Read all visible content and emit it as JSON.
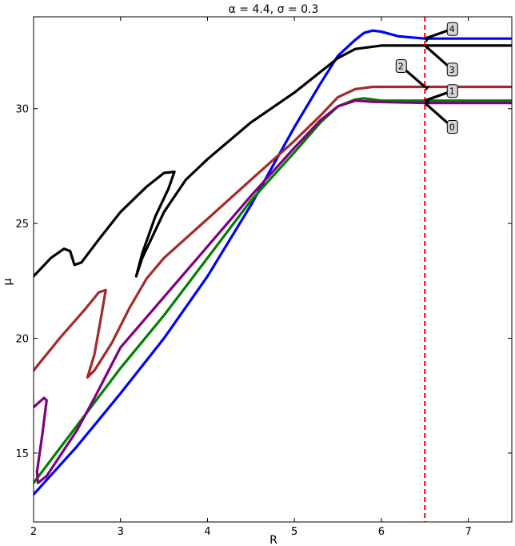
{
  "chart_data": {
    "type": "line",
    "title": "α = 4.4, σ = 0.3",
    "xlabel": "R",
    "ylabel": "μ",
    "xlim": [
      2,
      7.5
    ],
    "ylim": [
      12,
      34
    ],
    "xticks": [
      2,
      3,
      4,
      5,
      6,
      7
    ],
    "yticks": [
      15,
      20,
      25,
      30
    ],
    "grid": false,
    "vline": {
      "x": 6.5,
      "color": "#ff0000",
      "style": "dashed"
    },
    "series": [
      {
        "color": "#0000ff",
        "points": [
          [
            2.0,
            13.2
          ],
          [
            2.5,
            15.3
          ],
          [
            3.0,
            17.6
          ],
          [
            3.5,
            20.0
          ],
          [
            4.0,
            22.7
          ],
          [
            4.5,
            25.8
          ],
          [
            5.0,
            29.2
          ],
          [
            5.3,
            31.1
          ],
          [
            5.5,
            32.3
          ],
          [
            5.7,
            33.0
          ],
          [
            5.8,
            33.3
          ],
          [
            5.9,
            33.4
          ],
          [
            6.0,
            33.35
          ],
          [
            6.2,
            33.15
          ],
          [
            6.5,
            33.05
          ],
          [
            7.0,
            33.05
          ],
          [
            7.5,
            33.05
          ]
        ]
      },
      {
        "color": "#008000",
        "points": [
          [
            2.0,
            13.7
          ],
          [
            2.5,
            16.2
          ],
          [
            3.0,
            18.7
          ],
          [
            3.5,
            21.0
          ],
          [
            4.0,
            23.5
          ],
          [
            4.5,
            26.0
          ],
          [
            5.0,
            28.1
          ],
          [
            5.3,
            29.4
          ],
          [
            5.5,
            30.1
          ],
          [
            5.7,
            30.4
          ],
          [
            5.8,
            30.45
          ],
          [
            6.0,
            30.35
          ],
          [
            6.5,
            30.35
          ],
          [
            7.0,
            30.35
          ],
          [
            7.5,
            30.35
          ]
        ]
      },
      {
        "color": "#800080",
        "points": [
          [
            2.0,
            17.0
          ],
          [
            2.12,
            17.4
          ],
          [
            2.15,
            17.3
          ],
          [
            2.1,
            15.8
          ],
          [
            2.04,
            14.2
          ],
          [
            2.05,
            13.7
          ],
          [
            2.15,
            14.0
          ],
          [
            2.5,
            16.0
          ],
          [
            2.7,
            17.4
          ],
          [
            3.0,
            19.6
          ],
          [
            3.5,
            21.8
          ],
          [
            4.0,
            24.0
          ],
          [
            4.5,
            26.2
          ],
          [
            5.0,
            28.3
          ],
          [
            5.3,
            29.5
          ],
          [
            5.5,
            30.1
          ],
          [
            5.7,
            30.35
          ],
          [
            5.9,
            30.3
          ],
          [
            6.5,
            30.25
          ],
          [
            7.0,
            30.25
          ],
          [
            7.5,
            30.25
          ]
        ]
      },
      {
        "color": "#a52a2a",
        "points": [
          [
            2.0,
            18.6
          ],
          [
            2.3,
            20.0
          ],
          [
            2.6,
            21.3
          ],
          [
            2.75,
            22.0
          ],
          [
            2.83,
            22.1
          ],
          [
            2.78,
            21.0
          ],
          [
            2.7,
            19.3
          ],
          [
            2.62,
            18.3
          ],
          [
            2.7,
            18.6
          ],
          [
            2.9,
            19.8
          ],
          [
            3.1,
            21.3
          ],
          [
            3.3,
            22.6
          ],
          [
            3.5,
            23.5
          ],
          [
            4.0,
            25.2
          ],
          [
            4.5,
            26.9
          ],
          [
            5.0,
            28.6
          ],
          [
            5.3,
            29.7
          ],
          [
            5.5,
            30.5
          ],
          [
            5.7,
            30.85
          ],
          [
            5.9,
            30.95
          ],
          [
            6.5,
            30.95
          ],
          [
            7.0,
            30.95
          ],
          [
            7.5,
            30.95
          ]
        ]
      },
      {
        "color": "#000000",
        "points": [
          [
            2.0,
            22.7
          ],
          [
            2.2,
            23.5
          ],
          [
            2.35,
            23.9
          ],
          [
            2.42,
            23.8
          ],
          [
            2.47,
            23.2
          ],
          [
            2.55,
            23.3
          ],
          [
            2.75,
            24.3
          ],
          [
            3.0,
            25.5
          ],
          [
            3.3,
            26.6
          ],
          [
            3.5,
            27.2
          ],
          [
            3.62,
            27.25
          ],
          [
            3.55,
            26.5
          ],
          [
            3.4,
            25.3
          ],
          [
            3.25,
            23.7
          ],
          [
            3.18,
            22.7
          ],
          [
            3.25,
            23.5
          ],
          [
            3.5,
            25.5
          ],
          [
            3.75,
            26.9
          ],
          [
            4.0,
            27.8
          ],
          [
            4.5,
            29.4
          ],
          [
            5.0,
            30.7
          ],
          [
            5.3,
            31.6
          ],
          [
            5.5,
            32.2
          ],
          [
            5.7,
            32.6
          ],
          [
            6.0,
            32.75
          ],
          [
            6.5,
            32.75
          ],
          [
            7.0,
            32.75
          ],
          [
            7.5,
            32.75
          ]
        ]
      }
    ],
    "callouts": [
      {
        "label": "4",
        "series": 0,
        "x": 6.5,
        "y": 33.05,
        "placement": "upper-right"
      },
      {
        "label": "3",
        "series": 4,
        "x": 6.5,
        "y": 32.75,
        "placement": "lower-right"
      },
      {
        "label": "2",
        "series": 3,
        "x": 6.5,
        "y": 30.95,
        "placement": "upper-left"
      },
      {
        "label": "1",
        "series": 1,
        "x": 6.5,
        "y": 30.35,
        "placement": "upper-right"
      },
      {
        "label": "0",
        "series": 2,
        "x": 6.5,
        "y": 30.25,
        "placement": "lower-right"
      }
    ]
  }
}
